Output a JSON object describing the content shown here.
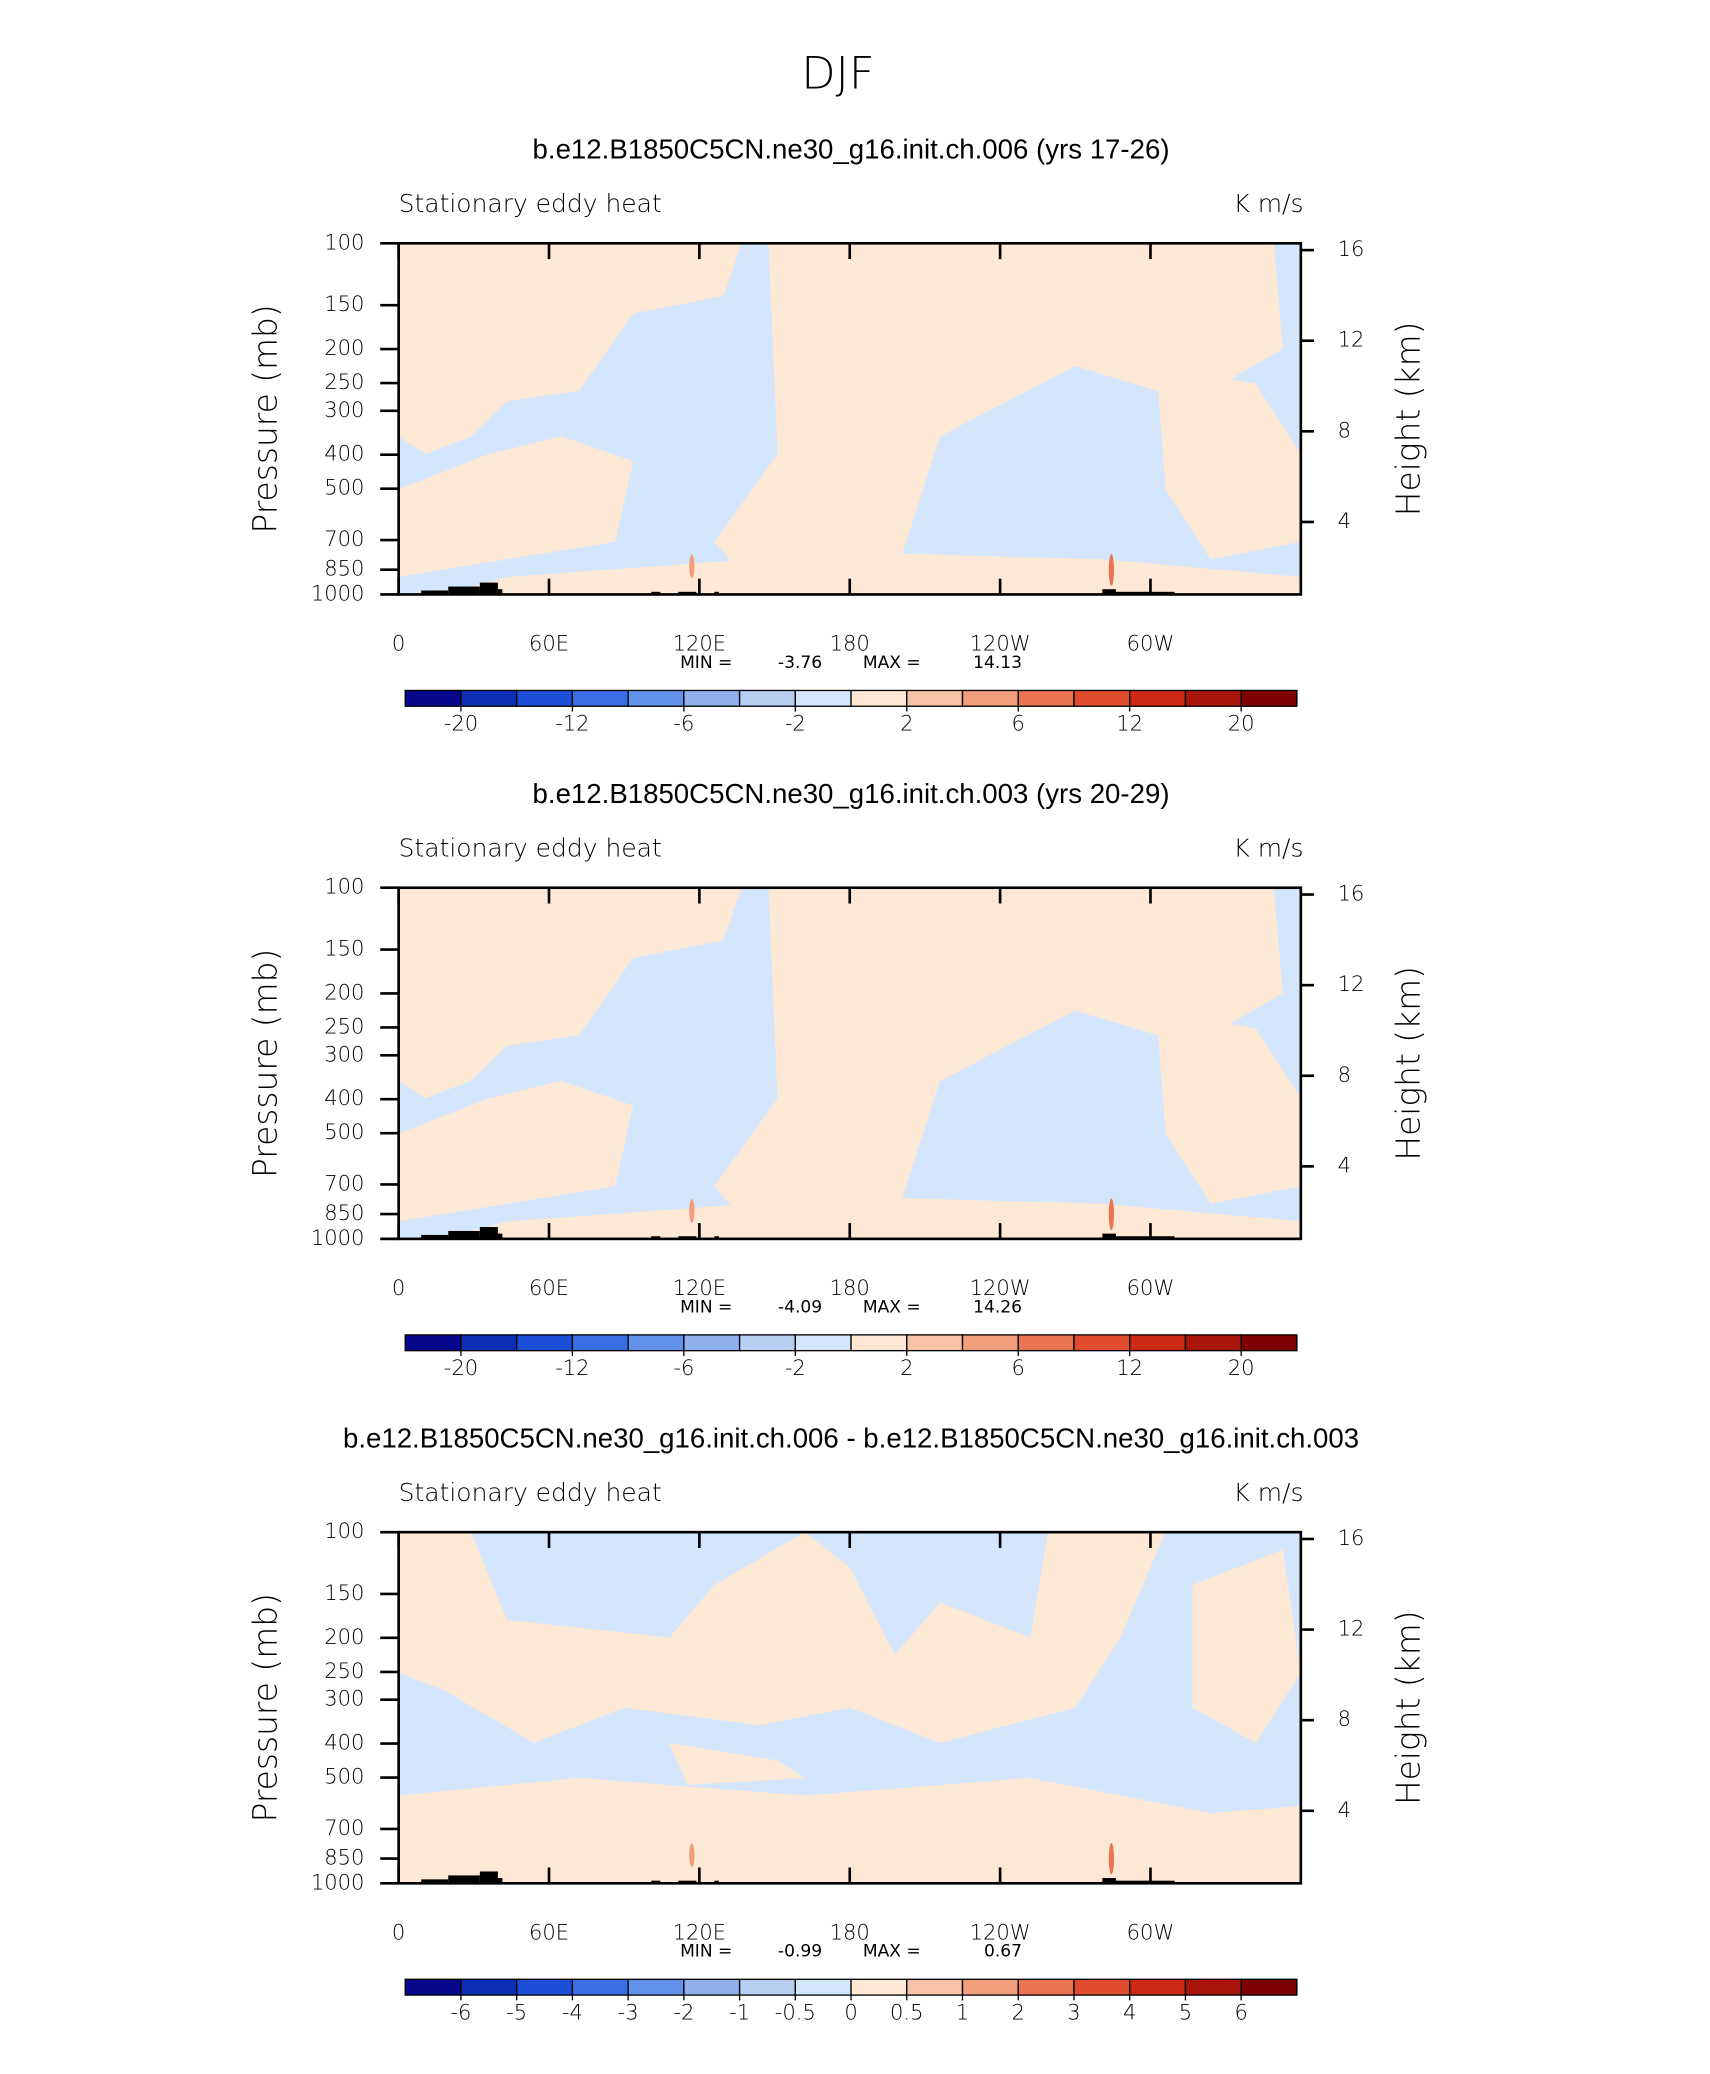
{
  "title": "DJF",
  "chart_data": [
    {
      "type": "contour",
      "title": "b.e12.B1850C5CN.ne30_g16.init.ch.006 (yrs 17-26)",
      "left_string": "Stationary eddy heat",
      "right_string": "K m/s",
      "ylabel": "Pressure (mb)",
      "y2label": "Height (km)",
      "xlim": [
        0,
        360
      ],
      "xticks": [
        0,
        {
          "value": 60,
          "label": "60E"
        },
        {
          "value": 120,
          "label": "120E"
        },
        180,
        {
          "value": 240,
          "label": "120W"
        },
        {
          "value": 300,
          "label": "60W"
        }
      ],
      "ylim": [
        1000,
        100
      ],
      "ylog": true,
      "yticks": [
        100,
        150,
        200,
        250,
        300,
        400,
        500,
        700,
        850,
        1000
      ],
      "y2lim": [
        0.8,
        16.3
      ],
      "y2ticks": [
        4,
        8,
        12,
        16
      ],
      "min_label": "MIN =",
      "min": -3.76,
      "max_label": "MAX =",
      "max": 14.13,
      "colorbar_colors": [
        "#08088c",
        "#0d2fb6",
        "#1b4fd8",
        "#3a6ee6",
        "#6291ec",
        "#8eb0ef",
        "#b7cdf2",
        "#d4e6fb",
        "#fde8d6",
        "#f8c2a6",
        "#f29d7c",
        "#eb7550",
        "#e14c2c",
        "#cc2a12",
        "#a8150a",
        "#7d0303"
      ],
      "colorbar_labels": [
        -20,
        -12,
        -6,
        -2,
        2,
        6,
        12,
        20
      ]
    },
    {
      "type": "contour",
      "title": "b.e12.B1850C5CN.ne30_g16.init.ch.003 (yrs 20-29)",
      "left_string": "Stationary eddy heat",
      "right_string": "K m/s",
      "ylabel": "Pressure (mb)",
      "y2label": "Height (km)",
      "xlim": [
        0,
        360
      ],
      "xticks": [
        0,
        {
          "value": 60,
          "label": "60E"
        },
        {
          "value": 120,
          "label": "120E"
        },
        180,
        {
          "value": 240,
          "label": "120W"
        },
        {
          "value": 300,
          "label": "60W"
        }
      ],
      "ylim": [
        1000,
        100
      ],
      "ylog": true,
      "yticks": [
        100,
        150,
        200,
        250,
        300,
        400,
        500,
        700,
        850,
        1000
      ],
      "y2lim": [
        0.8,
        16.3
      ],
      "y2ticks": [
        4,
        8,
        12,
        16
      ],
      "min_label": "MIN =",
      "min": -4.09,
      "max_label": "MAX =",
      "max": 14.26,
      "colorbar_colors": [
        "#08088c",
        "#0d2fb6",
        "#1b4fd8",
        "#3a6ee6",
        "#6291ec",
        "#8eb0ef",
        "#b7cdf2",
        "#d4e6fb",
        "#fde8d6",
        "#f8c2a6",
        "#f29d7c",
        "#eb7550",
        "#e14c2c",
        "#cc2a12",
        "#a8150a",
        "#7d0303"
      ],
      "colorbar_labels": [
        -20,
        -12,
        -6,
        -2,
        2,
        6,
        12,
        20
      ]
    },
    {
      "type": "contour",
      "title": "b.e12.B1850C5CN.ne30_g16.init.ch.006 - b.e12.B1850C5CN.ne30_g16.init.ch.003",
      "left_string": "Stationary eddy heat",
      "right_string": "K m/s",
      "ylabel": "Pressure (mb)",
      "y2label": "Height (km)",
      "xlim": [
        0,
        360
      ],
      "xticks": [
        0,
        {
          "value": 60,
          "label": "60E"
        },
        {
          "value": 120,
          "label": "120E"
        },
        180,
        {
          "value": 240,
          "label": "120W"
        },
        {
          "value": 300,
          "label": "60W"
        }
      ],
      "ylim": [
        1000,
        100
      ],
      "ylog": true,
      "yticks": [
        100,
        150,
        200,
        250,
        300,
        400,
        500,
        700,
        850,
        1000
      ],
      "y2lim": [
        0.8,
        16.3
      ],
      "y2ticks": [
        4,
        8,
        12,
        16
      ],
      "min_label": "MIN =",
      "min": -0.99,
      "max_label": "MAX =",
      "max": 0.67,
      "colorbar_colors": [
        "#08088c",
        "#0d2fb6",
        "#1b4fd8",
        "#3a6ee6",
        "#6291ec",
        "#8eb0ef",
        "#b7cdf2",
        "#d4e6fb",
        "#fde8d6",
        "#f8c2a6",
        "#f29d7c",
        "#eb7550",
        "#e14c2c",
        "#cc2a12",
        "#a8150a",
        "#7d0303"
      ],
      "colorbar_labels": [
        -6,
        -5,
        -4,
        -3,
        -2,
        -1,
        -0.5,
        0,
        0.5,
        1,
        2,
        3,
        4,
        5,
        6
      ]
    }
  ]
}
